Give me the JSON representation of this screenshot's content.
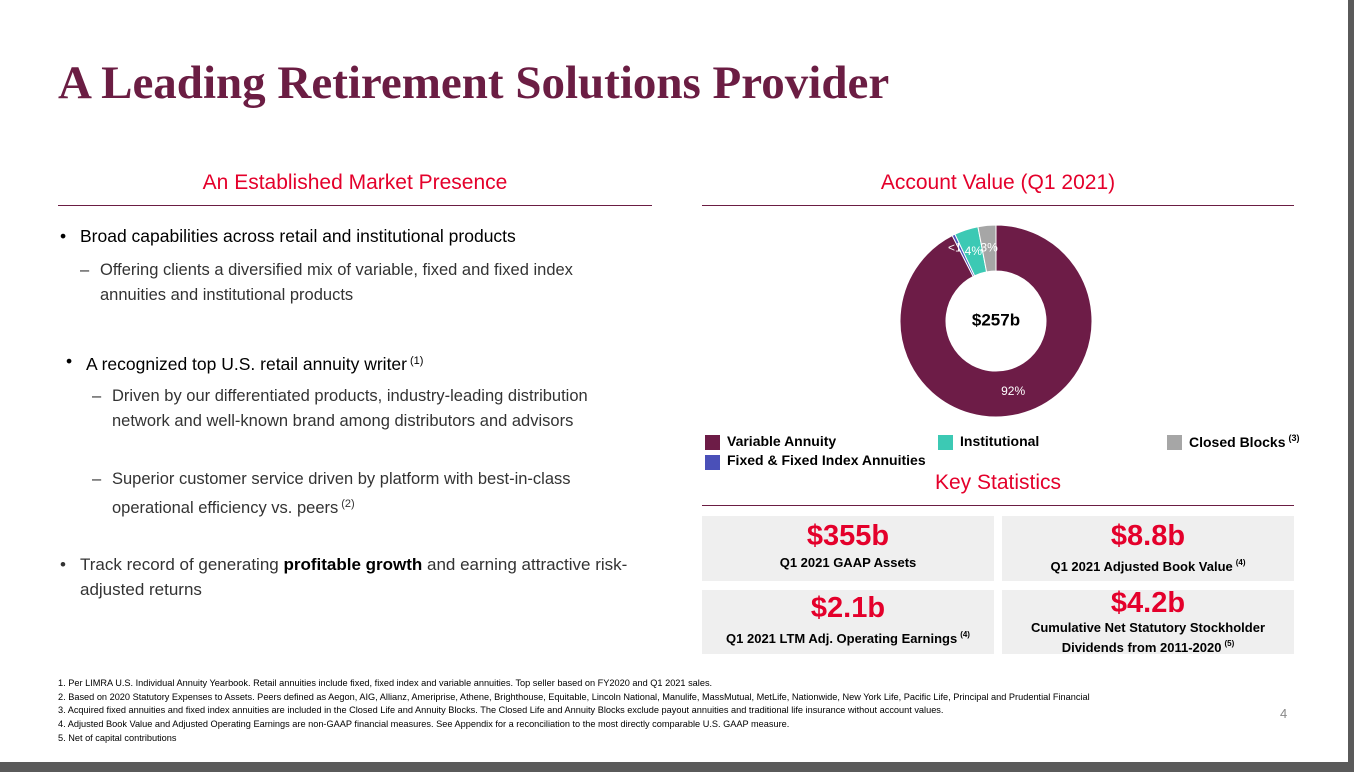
{
  "title": "A Leading Retirement Solutions Provider",
  "left": {
    "heading": "An Established Market Presence",
    "bullets": [
      {
        "text": "Broad capabilities across retail and institutional products",
        "sub": [
          {
            "text": "Offering clients a diversified mix of variable, fixed and fixed index annuities and institutional products"
          }
        ]
      },
      {
        "text": "A recognized top U.S. retail annuity writer",
        "note": "(1)",
        "sub": [
          {
            "text": "Driven by our differentiated products, industry-leading distribution network and well-known brand among distributors and advisors"
          },
          {
            "text": "Superior customer service driven by platform with best-in-class operational efficiency vs. peers",
            "note": "(2)"
          }
        ]
      },
      {
        "parts": [
          "Track record of generating ",
          "profitable growth",
          " and earning attractive risk-adjusted returns"
        ]
      }
    ]
  },
  "chart": {
    "type": "donut",
    "title": "Account Value (Q1 2021)",
    "center_label": "$257b",
    "categories": [
      "Variable Annuity",
      "Fixed & Fixed Index Annuities",
      "Institutional",
      "Closed Blocks"
    ],
    "values": [
      92,
      0.5,
      4,
      3
    ],
    "value_labels": [
      "92%",
      "<1%",
      "4%",
      "3%"
    ],
    "colors": [
      "#6d1c47",
      "#4a50b8",
      "#3cc9b4",
      "#a6a6a6"
    ],
    "legend_note": "(3)"
  },
  "stats": {
    "heading": "Key Statistics",
    "items": [
      {
        "value": "$355b",
        "label": "Q1 2021 GAAP Assets"
      },
      {
        "value": "$8.8b",
        "label": "Q1 2021 Adjusted Book Value",
        "note": "(4)"
      },
      {
        "value": "$2.1b",
        "label": "Q1 2021 LTM Adj. Operating Earnings",
        "note": "(4)"
      },
      {
        "value": "$4.2b",
        "label": "Cumulative Net Statutory Stockholder Dividends from 2011-2020",
        "note": "(5)"
      }
    ]
  },
  "footnotes": [
    "1. Per LIMRA U.S. Individual Annuity Yearbook. Retail annuities include fixed, fixed index and variable annuities. Top seller based on FY2020 and Q1 2021 sales.",
    "2. Based on 2020 Statutory Expenses to Assets. Peers defined as Aegon, AIG, Allianz, Ameriprise, Athene, Brighthouse, Equitable, Lincoln National, Manulife, MassMutual, MetLife, Nationwide, New York Life, Pacific Life, Principal and Prudential Financial",
    "3. Acquired fixed annuities and fixed index annuities are included in the Closed Life and Annuity Blocks. The Closed Life and Annuity Blocks exclude payout annuities and traditional life insurance without account values.",
    "4. Adjusted Book Value and Adjusted Operating Earnings are non-GAAP financial measures. See Appendix for a reconciliation to the most directly comparable U.S. GAAP measure.",
    "5. Net of capital contributions"
  ],
  "page_number": "4"
}
